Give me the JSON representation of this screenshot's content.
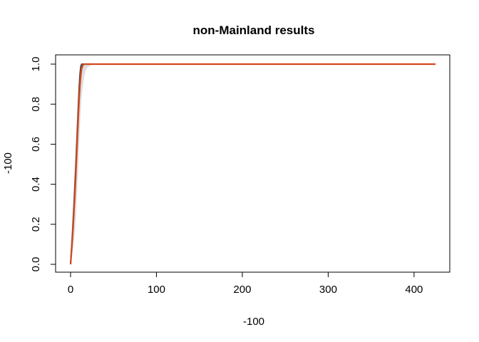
{
  "chart_data": {
    "type": "line",
    "title": "non-Mainland results",
    "xlabel": "-100",
    "ylabel": "-100",
    "xlim": [
      0,
      425
    ],
    "ylim": [
      0,
      1
    ],
    "x_ticks": [
      "0",
      "100",
      "200",
      "300",
      "400"
    ],
    "y_ticks": [
      "0.0",
      "0.2",
      "0.4",
      "0.6",
      "0.8",
      "1.0"
    ],
    "x_tick_values": [
      0,
      100,
      200,
      300,
      400
    ],
    "y_tick_values": [
      0,
      0.2,
      0.4,
      0.6,
      0.8,
      1.0
    ],
    "grid": false,
    "legend": "none",
    "colors": {
      "background_band": "#d0d0d0",
      "dark_line": "#4a4a4a",
      "highlight_line": "#d2461e"
    },
    "series": [
      {
        "style": "band",
        "x": [
          0,
          1,
          2,
          3,
          4,
          5,
          6,
          7,
          8,
          9,
          10,
          11,
          12,
          13,
          14,
          15,
          16,
          17,
          18,
          19,
          20,
          22,
          24,
          26,
          28,
          30,
          35,
          40,
          425
        ],
        "upper": [
          0.0,
          0.1,
          0.2,
          0.3,
          0.4,
          0.5,
          0.6,
          0.7,
          0.8,
          0.88,
          0.95,
          0.99,
          1.0,
          1.0,
          1.0,
          1.0,
          1.0,
          1.0,
          1.0,
          1.0,
          1.0,
          1.0,
          1.0,
          1.0,
          1.0,
          1.0,
          1.0,
          1.0,
          1.0
        ],
        "lower": [
          0.0,
          0.02,
          0.05,
          0.08,
          0.12,
          0.16,
          0.22,
          0.3,
          0.4,
          0.5,
          0.6,
          0.7,
          0.78,
          0.84,
          0.88,
          0.91,
          0.94,
          0.96,
          0.97,
          0.98,
          0.985,
          0.99,
          0.995,
          0.997,
          0.998,
          0.999,
          1.0,
          1.0,
          1.0
        ]
      },
      {
        "style": "dark",
        "x": [
          0,
          1,
          2,
          3,
          4,
          5,
          6,
          7,
          8,
          9,
          10,
          11,
          12,
          13,
          14,
          15,
          425
        ],
        "values": [
          0.0,
          0.07,
          0.14,
          0.22,
          0.3,
          0.39,
          0.48,
          0.58,
          0.68,
          0.78,
          0.88,
          0.95,
          0.99,
          1.0,
          1.0,
          1.0,
          1.0
        ]
      },
      {
        "style": "highlight",
        "x": [
          0,
          1,
          2,
          3,
          4,
          5,
          6,
          7,
          8,
          9,
          10,
          11,
          12,
          13,
          14,
          15,
          16,
          17,
          18,
          425
        ],
        "values": [
          0.0,
          0.06,
          0.12,
          0.19,
          0.27,
          0.35,
          0.44,
          0.54,
          0.64,
          0.74,
          0.83,
          0.9,
          0.95,
          0.98,
          0.99,
          1.0,
          1.0,
          1.0,
          1.0,
          1.0
        ]
      }
    ]
  }
}
